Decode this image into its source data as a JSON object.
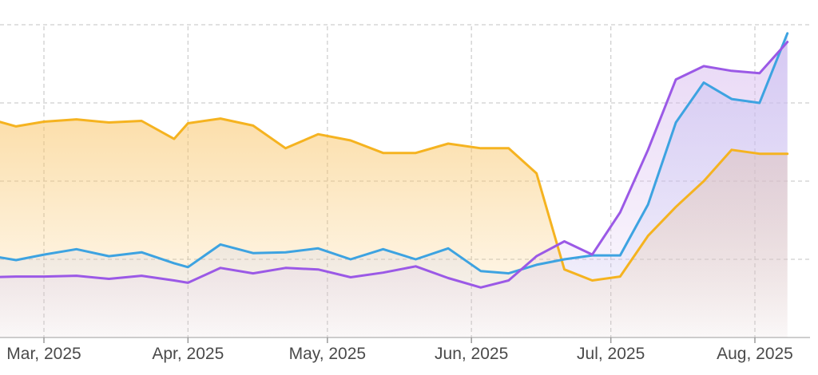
{
  "chart_data": {
    "type": "area",
    "x_labels": [
      "Mar, 2025",
      "Apr, 2025",
      "May, 2025",
      "Jun, 2025",
      "Jul, 2025",
      "Aug, 2025"
    ],
    "x_dates": [
      "2025-03-01",
      "2025-04-01",
      "2025-05-01",
      "2025-06-01",
      "2025-07-01",
      "2025-08-01"
    ],
    "x_range": [
      "2025-02-17",
      "2025-08-23"
    ],
    "y_range": [
      0,
      4
    ],
    "y_gridlines": [
      0,
      1,
      2,
      3,
      4
    ],
    "grid": true,
    "legend": "none",
    "y_tick_labels": "none",
    "series": [
      {
        "color": "#f5b320",
        "fill": "#f9c466",
        "dates": [
          "2025-02-17",
          "2025-02-23",
          "2025-03-01",
          "2025-03-08",
          "2025-03-15",
          "2025-03-22",
          "2025-03-29",
          "2025-04-01",
          "2025-04-08",
          "2025-04-15",
          "2025-04-22",
          "2025-04-29",
          "2025-05-06",
          "2025-05-13",
          "2025-05-20",
          "2025-05-27",
          "2025-06-03",
          "2025-06-09",
          "2025-06-15",
          "2025-06-21",
          "2025-06-27",
          "2025-07-03",
          "2025-07-09",
          "2025-07-15",
          "2025-07-21",
          "2025-07-27",
          "2025-08-02",
          "2025-08-08"
        ],
        "values": [
          2.8,
          2.7,
          2.76,
          2.79,
          2.75,
          2.77,
          2.54,
          2.74,
          2.8,
          2.71,
          2.42,
          2.6,
          2.52,
          2.36,
          2.36,
          2.48,
          2.42,
          2.42,
          2.1,
          0.87,
          0.73,
          0.78,
          1.3,
          1.67,
          2.0,
          2.4,
          2.35,
          2.35
        ]
      },
      {
        "color": "#3da3e1",
        "fill": "#b7c4f2",
        "dates": [
          "2025-02-17",
          "2025-02-23",
          "2025-03-01",
          "2025-03-08",
          "2025-03-15",
          "2025-03-22",
          "2025-03-29",
          "2025-04-01",
          "2025-04-08",
          "2025-04-15",
          "2025-04-22",
          "2025-04-29",
          "2025-05-06",
          "2025-05-13",
          "2025-05-20",
          "2025-05-27",
          "2025-06-03",
          "2025-06-09",
          "2025-06-15",
          "2025-06-21",
          "2025-06-27",
          "2025-07-03",
          "2025-07-09",
          "2025-07-15",
          "2025-07-21",
          "2025-07-27",
          "2025-08-02",
          "2025-08-08"
        ],
        "values": [
          1.05,
          0.99,
          1.06,
          1.13,
          1.04,
          1.09,
          0.95,
          0.9,
          1.19,
          1.08,
          1.09,
          1.14,
          1.0,
          1.13,
          1.0,
          1.14,
          0.85,
          0.82,
          0.93,
          1.0,
          1.05,
          1.05,
          1.7,
          2.75,
          3.26,
          3.05,
          3.0,
          3.89
        ]
      },
      {
        "color": "#9b59e6",
        "fill": "#d6b8ee",
        "dates": [
          "2025-02-17",
          "2025-02-23",
          "2025-03-01",
          "2025-03-08",
          "2025-03-15",
          "2025-03-22",
          "2025-03-29",
          "2025-04-01",
          "2025-04-08",
          "2025-04-15",
          "2025-04-22",
          "2025-04-29",
          "2025-05-06",
          "2025-05-13",
          "2025-05-20",
          "2025-05-27",
          "2025-06-03",
          "2025-06-09",
          "2025-06-15",
          "2025-06-21",
          "2025-06-27",
          "2025-07-03",
          "2025-07-09",
          "2025-07-15",
          "2025-07-21",
          "2025-07-27",
          "2025-08-02",
          "2025-08-08"
        ],
        "values": [
          0.77,
          0.78,
          0.78,
          0.79,
          0.75,
          0.79,
          0.73,
          0.7,
          0.89,
          0.82,
          0.89,
          0.87,
          0.77,
          0.83,
          0.91,
          0.76,
          0.64,
          0.73,
          1.04,
          1.23,
          1.06,
          1.6,
          2.4,
          3.3,
          3.47,
          3.41,
          3.38,
          3.78
        ]
      }
    ]
  }
}
